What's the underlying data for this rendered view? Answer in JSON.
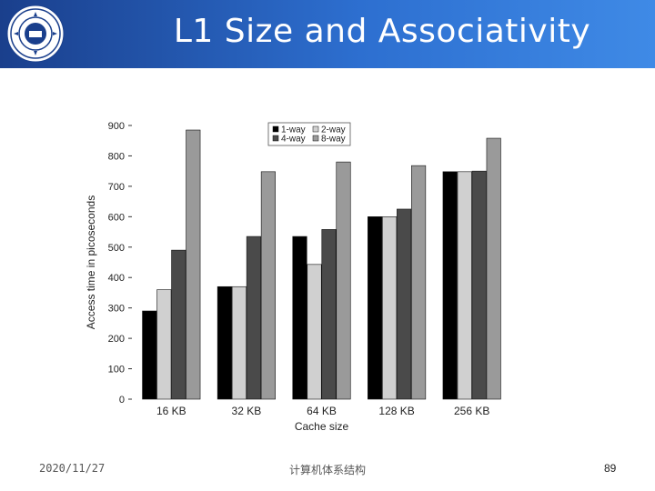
{
  "header": {
    "title": "L1 Size and Associativity"
  },
  "footer": {
    "date": "2020/11/27",
    "course": "计算机体系结构",
    "page": "89"
  },
  "chart_data": {
    "type": "bar",
    "title": "",
    "xlabel": "Cache size",
    "ylabel": "Access time in picoseconds",
    "ylim": [
      0,
      900
    ],
    "yticks": [
      "0",
      "100",
      "200",
      "300",
      "400",
      "500",
      "600",
      "700",
      "800",
      "900"
    ],
    "categories": [
      "16 KB",
      "32 KB",
      "64 KB",
      "128 KB",
      "256 KB"
    ],
    "series": [
      {
        "name": "1-way",
        "color": "#000000",
        "values": [
          290,
          370,
          535,
          600,
          748
        ]
      },
      {
        "name": "2-way",
        "color": "#d0d0d0",
        "values": [
          360,
          370,
          443,
          600,
          748
        ]
      },
      {
        "name": "4-way",
        "color": "#4a4a4a",
        "values": [
          490,
          535,
          558,
          625,
          750
        ]
      },
      {
        "name": "8-way",
        "color": "#9a9a9a",
        "values": [
          885,
          748,
          780,
          768,
          858
        ]
      }
    ],
    "legend": "top-center",
    "grid": false
  }
}
